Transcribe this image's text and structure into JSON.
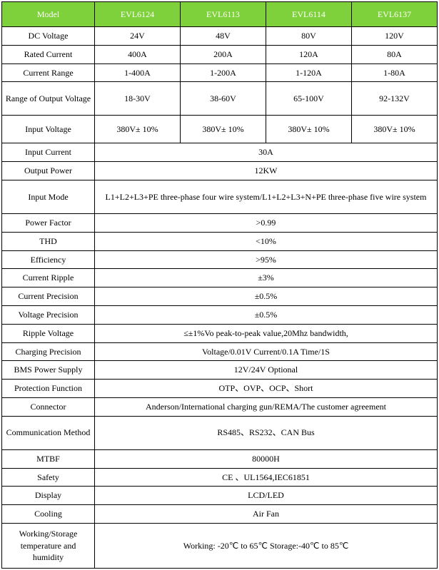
{
  "header": {
    "c0": "Model",
    "c1": "EVL6124",
    "c2": "EVL6113",
    "c3": "EVL6114",
    "c4": "EVL6137"
  },
  "rows4": [
    {
      "label": "DC Voltage",
      "v": [
        "24V",
        "48V",
        "80V",
        "120V"
      ]
    },
    {
      "label": "Rated Current",
      "v": [
        "400A",
        "200A",
        "120A",
        "80A"
      ]
    },
    {
      "label": "Current Range",
      "v": [
        "1-400A",
        "1-200A",
        "1-120A",
        "1-80A"
      ]
    },
    {
      "label": "Range of Output Voltage",
      "v": [
        "18-30V",
        "38-60V",
        "65-100V",
        "92-132V"
      ],
      "tall": true
    },
    {
      "label": "Input Voltage",
      "v": [
        "380V± 10%",
        "380V± 10%",
        "380V± 10%",
        "380V± 10%"
      ],
      "tallcells": true
    }
  ],
  "rowsSpan": [
    {
      "label": "Input Current",
      "v": "30A"
    },
    {
      "label": "Output Power",
      "v": "12KW"
    },
    {
      "label": "Input Mode",
      "v": "L1+L2+L3+PE    three-phase four wire system/L1+L2+L3+N+PE    three-phase five wire system",
      "tall": true
    },
    {
      "label": "Power Factor",
      "v": ">0.99"
    },
    {
      "label": "THD",
      "v": "<10%"
    },
    {
      "label": "Efficiency",
      "v": ">95%"
    },
    {
      "label": "Current Ripple",
      "v": "±3%"
    },
    {
      "label": "Current Precision",
      "v": "±0.5%"
    },
    {
      "label": "Voltage Precision",
      "v": "±0.5%"
    },
    {
      "label": "Ripple Voltage",
      "v": "≤±1%Vo peak-to-peak value,20Mhz bandwidth,"
    },
    {
      "label": "Charging Precision",
      "v": "Voltage/0.01V Current/0.1A Time/1S"
    },
    {
      "label": "BMS Power Supply",
      "v": "12V/24V Optional"
    },
    {
      "label": "Protection Function",
      "v": "OTP、OVP、OCP、Short"
    },
    {
      "label": "Connector",
      "v": "Anderson/International charging gun/REMA/The customer agreement"
    },
    {
      "label": "Communication Method",
      "v": "RS485、RS232、CAN Bus",
      "tall": true
    },
    {
      "label": "MTBF",
      "v": "80000H"
    },
    {
      "label": "Safety",
      "v": "CE 、UL1564,IEC61851"
    },
    {
      "label": "Display",
      "v": "LCD/LED"
    },
    {
      "label": "Cooling",
      "v": "Air Fan"
    },
    {
      "label": "Working/Storage temperature and humidity",
      "v": "Working: -20℃ to 65℃    Storage:-40℃ to 85℃",
      "taller": true
    }
  ]
}
